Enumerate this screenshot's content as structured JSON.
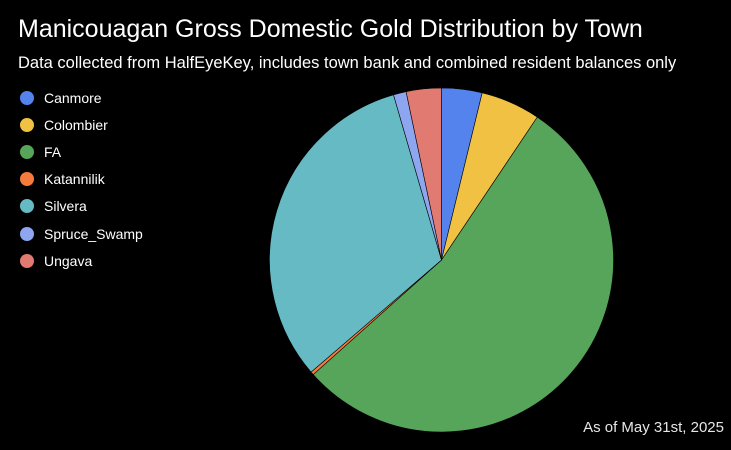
{
  "chart_data": {
    "type": "pie",
    "title": "Manicouagan Gross Domestic Gold Distribution by Town",
    "subtitle": "Data collected from HalfEyeKey, includes town bank and combined resident balances only",
    "categories": [
      "Canmore",
      "Colombier",
      "FA",
      "Katannilik",
      "Silvera",
      "Spruce_Swamp",
      "Ungava"
    ],
    "values": [
      3.8,
      5.6,
      54.0,
      0.3,
      31.8,
      1.2,
      3.3
    ],
    "unit": "percent share",
    "colors": [
      "#5583ee",
      "#f0c143",
      "#57a55a",
      "#f47b3b",
      "#66bac3",
      "#8ea5f0",
      "#e17b72"
    ],
    "start_angle_deg": 0,
    "direction": "clockwise",
    "legend": "left",
    "footnote": "As of May 31st, 2025"
  }
}
